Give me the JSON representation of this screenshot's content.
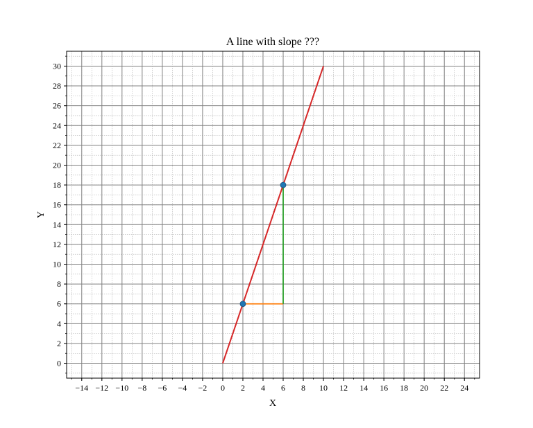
{
  "chart_data": {
    "type": "line",
    "title": "A line with slope ???",
    "xlabel": "X",
    "ylabel": "Y",
    "xlim": [
      -15.5,
      25.5
    ],
    "ylim": [
      -1.5,
      31.5
    ],
    "xticks": [
      -14,
      -12,
      -10,
      -8,
      -6,
      -4,
      -2,
      0,
      2,
      4,
      6,
      8,
      10,
      12,
      14,
      16,
      18,
      20,
      22,
      24
    ],
    "yticks": [
      0,
      2,
      4,
      6,
      8,
      10,
      12,
      14,
      16,
      18,
      20,
      22,
      24,
      26,
      28,
      30
    ],
    "xtick_labels": [
      "−14",
      "−12",
      "−10",
      "−8",
      "−6",
      "−4",
      "−2",
      "0",
      "2",
      "4",
      "6",
      "8",
      "10",
      "12",
      "14",
      "16",
      "18",
      "20",
      "22",
      "24"
    ],
    "ytick_labels": [
      "0",
      "2",
      "4",
      "6",
      "8",
      "10",
      "12",
      "14",
      "16",
      "18",
      "20",
      "22",
      "24",
      "26",
      "28",
      "30"
    ],
    "grid": true,
    "minor_grid": true,
    "minor_step": 1,
    "series": [
      {
        "color": "#d62728",
        "x": [
          0,
          10
        ],
        "y": [
          0,
          30
        ]
      }
    ],
    "annotations": [
      {
        "type": "segment",
        "color": "#ff7f0e",
        "x": [
          2,
          6
        ],
        "y": [
          6,
          6
        ]
      },
      {
        "type": "segment",
        "color": "#2ca02c",
        "x": [
          6,
          6
        ],
        "y": [
          6,
          18
        ]
      }
    ],
    "points": [
      {
        "x": 2,
        "y": 6,
        "color": "#1f77b4"
      },
      {
        "x": 6,
        "y": 18,
        "color": "#1f77b4"
      }
    ]
  }
}
